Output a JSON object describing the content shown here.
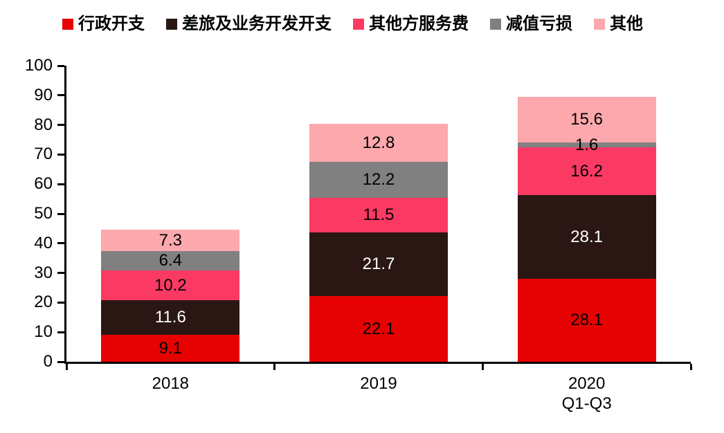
{
  "page": {
    "background_color": "#ffffff",
    "text_color": "#000000",
    "axis_color": "#000000"
  },
  "chart_data": {
    "type": "bar",
    "stacked": true,
    "title": "",
    "xlabel": "",
    "ylabel": "",
    "grid": false,
    "legend_position": "top",
    "ylim": [
      0,
      100
    ],
    "yticks": [
      0,
      10,
      20,
      30,
      40,
      50,
      60,
      70,
      80,
      90,
      100
    ],
    "categories": [
      "2018",
      "2019",
      "2020"
    ],
    "category_sublabels": [
      "",
      "",
      "Q1-Q3"
    ],
    "series": [
      {
        "name": "行政开支",
        "slug": "admin-expense",
        "color": "#e60202",
        "label_color": "#000000",
        "values": [
          9.1,
          22.1,
          28.1
        ]
      },
      {
        "name": "差旅及业务开发开支",
        "slug": "travel-and-business-dev-expense",
        "color": "#2a1714",
        "label_color": "#ffffff",
        "values": [
          11.6,
          21.7,
          28.1
        ]
      },
      {
        "name": "其他方服务费",
        "slug": "third-party-service-fee",
        "color": "#fb3a63",
        "label_color": "#000000",
        "values": [
          10.2,
          11.5,
          16.2
        ]
      },
      {
        "name": "减值亏损",
        "slug": "impairment-loss",
        "color": "#808080",
        "label_color": "#000000",
        "values": [
          6.4,
          12.2,
          1.6
        ]
      },
      {
        "name": "其他",
        "slug": "others",
        "color": "#fda8ac",
        "label_color": "#000000",
        "values": [
          7.3,
          12.8,
          15.6
        ]
      }
    ]
  }
}
